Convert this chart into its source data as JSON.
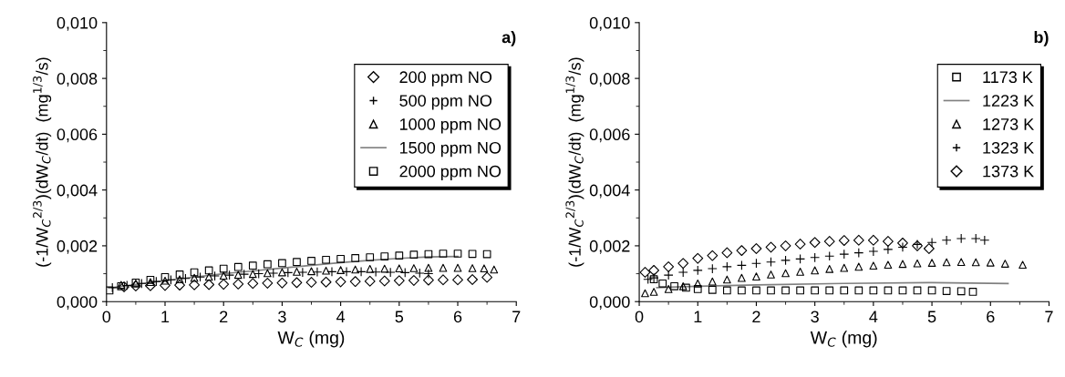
{
  "chart_data": [
    {
      "type": "scatter",
      "xlabel": "W$_{C}$ (mg)",
      "ylabel": "(-1/W$_{C}$$^{2/3}$)(dW$_{C}$/dt)  (mg$^{1/3}$/s)",
      "annotations": [
        "a)"
      ],
      "xlim": [
        0,
        7
      ],
      "xticks": [
        0,
        1,
        2,
        3,
        4,
        5,
        6,
        7
      ],
      "ylim": [
        0,
        0.01
      ],
      "yticks": [
        {
          "value": 0,
          "label": "0,000"
        },
        {
          "value": 0.002,
          "label": "0,002"
        },
        {
          "value": 0.004,
          "label": "0,004"
        },
        {
          "value": 0.006,
          "label": "0,006"
        },
        {
          "value": 0.008,
          "label": "0,008"
        },
        {
          "value": 0.01,
          "label": "0,010"
        }
      ],
      "legend": "top right",
      "grid": false,
      "series": [
        {
          "name": "200 ppm NO",
          "color": "#000000",
          "marker": "diamond",
          "x": [
            0.3,
            0.5,
            0.75,
            1,
            1.25,
            1.5,
            1.75,
            2,
            2.25,
            2.5,
            2.75,
            3,
            3.25,
            3.5,
            3.75,
            4,
            4.25,
            4.5,
            4.75,
            5,
            5.25,
            5.5,
            5.75,
            6,
            6.25,
            6.5
          ],
          "values": [
            0.00053,
            0.00056,
            0.00057,
            0.00058,
            0.00059,
            0.0006,
            0.00061,
            0.00062,
            0.00063,
            0.00065,
            0.00066,
            0.00067,
            0.00068,
            0.00069,
            0.0007,
            0.00071,
            0.00072,
            0.00073,
            0.00074,
            0.00075,
            0.00076,
            0.00077,
            0.00078,
            0.00078,
            0.00079,
            0.00087
          ]
        },
        {
          "name": "500 ppm NO",
          "color": "#000000",
          "marker": "cross",
          "x": [
            0.1,
            0.35,
            0.6,
            0.85,
            1.1,
            1.35,
            1.6,
            1.85,
            2.1,
            2.35,
            2.6,
            2.85,
            3.1,
            3.35,
            3.6,
            3.85,
            4.1,
            4.35,
            4.6,
            4.85,
            5.1,
            5.35,
            5.5
          ],
          "values": [
            0.0005,
            0.00058,
            0.00065,
            0.00072,
            0.00078,
            0.00083,
            0.00088,
            0.00092,
            0.00095,
            0.00098,
            0.001,
            0.00102,
            0.00104,
            0.00105,
            0.00106,
            0.00107,
            0.00107,
            0.00107,
            0.00106,
            0.00105,
            0.00104,
            0.00102,
            0.001
          ]
        },
        {
          "name": "1000 ppm NO",
          "color": "#000000",
          "marker": "triangle",
          "x": [
            0.25,
            0.5,
            0.75,
            1,
            1.25,
            1.5,
            1.75,
            2,
            2.25,
            2.5,
            2.75,
            3,
            3.25,
            3.5,
            3.75,
            4,
            4.25,
            4.5,
            4.75,
            5,
            5.25,
            5.5,
            5.75,
            6,
            6.25,
            6.45,
            6.62
          ],
          "values": [
            0.0006,
            0.00065,
            0.0007,
            0.00075,
            0.0008,
            0.00085,
            0.00089,
            0.00093,
            0.00096,
            0.00099,
            0.00102,
            0.00105,
            0.00107,
            0.00109,
            0.00111,
            0.00113,
            0.00115,
            0.00117,
            0.00118,
            0.00119,
            0.0012,
            0.00121,
            0.00121,
            0.00121,
            0.0012,
            0.00119,
            0.00115
          ]
        },
        {
          "name": "1500 ppm NO",
          "color": "#808080",
          "type": "line",
          "x": [
            0.1,
            0.5,
            1,
            1.5,
            2,
            2.5,
            3,
            3.5,
            4,
            4.5,
            5,
            5.5,
            6
          ],
          "values": [
            0.0005,
            0.00062,
            0.00075,
            0.00088,
            0.001,
            0.0011,
            0.0012,
            0.0013,
            0.0014,
            0.00148,
            0.00155,
            0.0016,
            0.00162
          ]
        },
        {
          "name": "2000 ppm NO",
          "color": "#000000",
          "marker": "square",
          "x": [
            0.05,
            0.25,
            0.5,
            0.75,
            1,
            1.25,
            1.5,
            1.75,
            2,
            2.25,
            2.5,
            2.75,
            3,
            3.25,
            3.5,
            3.75,
            4,
            4.25,
            4.5,
            4.75,
            5,
            5.25,
            5.5,
            5.75,
            6,
            6.25,
            6.5
          ],
          "values": [
            0.0004,
            0.00055,
            0.00068,
            0.00078,
            0.00088,
            0.00097,
            0.00105,
            0.00112,
            0.00118,
            0.00124,
            0.00129,
            0.00134,
            0.00138,
            0.00142,
            0.00146,
            0.0015,
            0.00153,
            0.00156,
            0.00159,
            0.00162,
            0.00165,
            0.00168,
            0.0017,
            0.00172,
            0.00172,
            0.00171,
            0.0017
          ]
        }
      ]
    },
    {
      "type": "scatter",
      "xlabel": "W$_{C}$ (mg)",
      "ylabel": "(-1/W$_{C}$$^{2/3}$)(dW$_{C}$/dt)  (mg$^{1/3}$/s)",
      "annotations": [
        "b)"
      ],
      "xlim": [
        0,
        7
      ],
      "xticks": [
        0,
        1,
        2,
        3,
        4,
        5,
        6,
        7
      ],
      "ylim": [
        0,
        0.01
      ],
      "yticks": [
        {
          "value": 0,
          "label": "0,000"
        },
        {
          "value": 0.002,
          "label": "0,002"
        },
        {
          "value": 0.004,
          "label": "0,004"
        },
        {
          "value": 0.006,
          "label": "0,006"
        },
        {
          "value": 0.008,
          "label": "0,008"
        },
        {
          "value": 0.01,
          "label": "0,010"
        }
      ],
      "legend": "top right",
      "grid": false,
      "series": [
        {
          "name": "1173 K",
          "color": "#000000",
          "marker": "square",
          "x": [
            0.25,
            0.4,
            0.6,
            0.8,
            1,
            1.25,
            1.5,
            1.75,
            2,
            2.25,
            2.5,
            2.75,
            3,
            3.25,
            3.5,
            3.75,
            4,
            4.25,
            4.5,
            4.75,
            5,
            5.25,
            5.5,
            5.7
          ],
          "values": [
            0.0008,
            0.00065,
            0.00055,
            0.0005,
            0.00045,
            0.00042,
            0.0004,
            0.0004,
            0.0004,
            0.0004,
            0.0004,
            0.0004,
            0.0004,
            0.0004,
            0.0004,
            0.0004,
            0.0004,
            0.0004,
            0.0004,
            0.0004,
            0.0004,
            0.00038,
            0.00037,
            0.00035
          ]
        },
        {
          "name": "1223 K",
          "color": "#808080",
          "type": "line",
          "x": [
            0.3,
            1,
            2,
            3.5,
            5,
            6.3
          ],
          "values": [
            0.0005,
            0.00055,
            0.0006,
            0.00065,
            0.00068,
            0.00065
          ]
        },
        {
          "name": "1273 K",
          "color": "#000000",
          "marker": "triangle",
          "x": [
            0.1,
            0.25,
            0.5,
            0.75,
            1,
            1.25,
            1.5,
            1.75,
            2,
            2.25,
            2.5,
            2.75,
            3,
            3.25,
            3.5,
            3.75,
            4,
            4.25,
            4.5,
            4.75,
            5,
            5.25,
            5.5,
            5.75,
            6,
            6.25,
            6.55
          ],
          "values": [
            0.0003,
            0.00035,
            0.00045,
            0.00055,
            0.00065,
            0.00072,
            0.00079,
            0.00085,
            0.0009,
            0.00097,
            0.00102,
            0.00107,
            0.00112,
            0.00117,
            0.00121,
            0.00125,
            0.00129,
            0.00132,
            0.00135,
            0.00137,
            0.00139,
            0.00141,
            0.00142,
            0.00141,
            0.0014,
            0.00136,
            0.00132
          ]
        },
        {
          "name": "1323 K",
          "color": "#000000",
          "marker": "cross",
          "x": [
            0.15,
            0.25,
            0.5,
            0.75,
            1,
            1.25,
            1.5,
            1.75,
            2,
            2.25,
            2.5,
            2.75,
            3,
            3.25,
            3.5,
            3.75,
            4,
            4.25,
            4.5,
            4.75,
            5,
            5.25,
            5.5,
            5.75,
            5.9
          ],
          "values": [
            0.0008,
            0.00085,
            0.00095,
            0.00105,
            0.00112,
            0.00118,
            0.00125,
            0.0013,
            0.00137,
            0.00142,
            0.00148,
            0.00153,
            0.00158,
            0.00163,
            0.0017,
            0.00175,
            0.0018,
            0.00187,
            0.00195,
            0.00205,
            0.00212,
            0.0022,
            0.00226,
            0.00226,
            0.0022
          ]
        },
        {
          "name": "1373 K",
          "color": "#000000",
          "marker": "diamond",
          "x": [
            0.1,
            0.25,
            0.5,
            0.75,
            1,
            1.25,
            1.5,
            1.75,
            2,
            2.25,
            2.5,
            2.75,
            3,
            3.25,
            3.5,
            3.75,
            4,
            4.25,
            4.5,
            4.75,
            4.95
          ],
          "values": [
            0.00105,
            0.00112,
            0.00125,
            0.00137,
            0.00155,
            0.00165,
            0.00175,
            0.00183,
            0.0019,
            0.00195,
            0.002,
            0.00206,
            0.00212,
            0.00216,
            0.00219,
            0.0022,
            0.0022,
            0.00216,
            0.0021,
            0.002,
            0.0019
          ]
        }
      ]
    }
  ]
}
